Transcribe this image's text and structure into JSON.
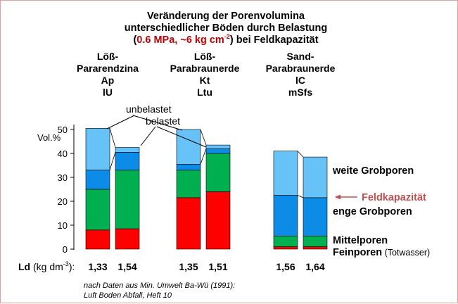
{
  "chart_data": {
    "type": "bar",
    "stacked": true,
    "title": {
      "line1": "Veränderung der Porenvolumina",
      "line2": "unterschiedlicher Böden durch Belastung",
      "line3_open": "(",
      "line3_highlight": "0.6 MPa, ~6 kg cm",
      "line3_sup": "-2",
      "line3_close": ") bei Feldkapazität"
    },
    "soils": [
      {
        "lines": [
          "Löß-",
          "Pararendzina",
          "Ap",
          "lU"
        ]
      },
      {
        "lines": [
          "Löß-",
          "Parabraunerde",
          "Kt",
          "Ltu"
        ]
      },
      {
        "lines": [
          "Sand-",
          "Parabraunerde",
          "lC",
          "mSfs"
        ]
      }
    ],
    "categories": [
      "unbelastet",
      "belastet",
      "unbelastet",
      "belastet",
      "unbelastet",
      "belastet"
    ],
    "soil_of_bar": [
      0,
      0,
      1,
      1,
      2,
      2
    ],
    "ld_values": [
      "1,33",
      "1,54",
      "1,35",
      "1,51",
      "1,56",
      "1,64"
    ],
    "ld_label": {
      "bold": "Ld",
      "unit": " (kg dm",
      "sup": "-3",
      "close": "):"
    },
    "series": [
      {
        "name": "Feinporen",
        "color": "#ff0000",
        "values": [
          8,
          8.5,
          21.5,
          24,
          1,
          1
        ]
      },
      {
        "name": "Mittelporen",
        "color": "#00b050",
        "values": [
          17,
          24.5,
          11.5,
          16,
          4.5,
          4.5
        ]
      },
      {
        "name": "enge Grobporen",
        "color": "#0c8ce6",
        "values": [
          8,
          7.5,
          2.5,
          2,
          17,
          16
        ]
      },
      {
        "name": "weite Grobporen",
        "color": "#67c2f7",
        "values": [
          17.5,
          2,
          14.5,
          1.5,
          18.5,
          17
        ]
      }
    ],
    "ylabel": "Vol.%",
    "ylim": [
      0,
      50
    ],
    "yticks": [
      0,
      10,
      20,
      30,
      40,
      50
    ],
    "annotations": {
      "unloaded": "unbelastet",
      "loaded": "belastet",
      "field_capacity": "Feldkapazität",
      "field_capacity_level": 22.5,
      "weite": "weite Grobporen",
      "enge": "enge Grobporen",
      "mittel": "Mittelporen",
      "fein": "Feinporen",
      "fein_note": " (Totwasser)"
    },
    "source": {
      "line1": "nach Daten aus Min. Umwelt Ba-Wü (1991):",
      "line2": "Luft Boden Abfall, Heft 10"
    }
  }
}
